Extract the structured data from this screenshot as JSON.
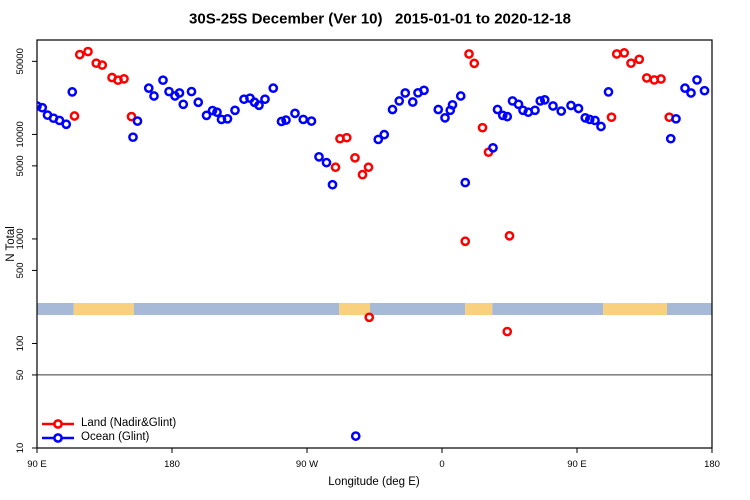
{
  "chart_data": {
    "type": "scatter",
    "title": "30S-25S December (Ver 10)   2015-01-01 to 2020-12-18",
    "xlabel": "Longitude (deg E)",
    "ylabel": "N Total",
    "xlim": [
      90,
      540
    ],
    "ylim": [
      10,
      80000
    ],
    "yscale": "log",
    "grid": "off",
    "legend_position": "bottom-left",
    "x_ticks": [
      {
        "value": 90,
        "label": "90 E"
      },
      {
        "value": 180,
        "label": "180"
      },
      {
        "value": 270,
        "label": "90 W"
      },
      {
        "value": 360,
        "label": "0"
      },
      {
        "value": 450,
        "label": "90 E"
      },
      {
        "value": 540,
        "label": "180"
      }
    ],
    "y_ticks": [
      {
        "value": 10,
        "label": "10"
      },
      {
        "value": 50,
        "label": "50"
      },
      {
        "value": 100,
        "label": "100"
      },
      {
        "value": 500,
        "label": "500"
      },
      {
        "value": 1000,
        "label": "1000"
      },
      {
        "value": 5000,
        "label": "5000"
      },
      {
        "value": 10000,
        "label": "10000"
      },
      {
        "value": 50000,
        "label": "50000"
      }
    ],
    "reference_line": {
      "value": 50,
      "color": "#3a3a3a"
    },
    "surface_band": {
      "value_range": [
        187,
        244
      ],
      "colors": {
        "ocean": "#a6bad8",
        "land": "#f9d07e"
      },
      "segments": [
        {
          "from": 90,
          "to": 114.5,
          "type": "ocean"
        },
        {
          "from": 114.5,
          "to": 154.5,
          "type": "land"
        },
        {
          "from": 154.5,
          "to": 291.5,
          "type": "ocean"
        },
        {
          "from": 291.5,
          "to": 312,
          "type": "land"
        },
        {
          "from": 312,
          "to": 375.5,
          "type": "ocean"
        },
        {
          "from": 375.5,
          "to": 393.5,
          "type": "land"
        },
        {
          "from": 393.5,
          "to": 467.5,
          "type": "ocean"
        },
        {
          "from": 467.5,
          "to": 510,
          "type": "land"
        },
        {
          "from": 510,
          "to": 540,
          "type": "ocean"
        }
      ]
    },
    "series": [
      {
        "name": "Land (Nadir&Glint)",
        "color": "#ff0000",
        "points": [
          [
            115,
            15000
          ],
          [
            118.5,
            58000
          ],
          [
            124,
            62000
          ],
          [
            129.5,
            48000
          ],
          [
            133.5,
            46000
          ],
          [
            140,
            35000
          ],
          [
            144,
            33000
          ],
          [
            148,
            34000
          ],
          [
            153,
            14800
          ],
          [
            289,
            4850
          ],
          [
            292,
            9100
          ],
          [
            296.5,
            9300
          ],
          [
            302,
            5970
          ],
          [
            307,
            4120
          ],
          [
            311,
            4850
          ],
          [
            311.5,
            178
          ],
          [
            375.5,
            950
          ],
          [
            378,
            58800
          ],
          [
            381.5,
            47800
          ],
          [
            387,
            11600
          ],
          [
            391,
            6760
          ],
          [
            403.5,
            130
          ],
          [
            405,
            1070
          ],
          [
            473,
            14600
          ],
          [
            476.5,
            58800
          ],
          [
            481.5,
            60200
          ],
          [
            486,
            48000
          ],
          [
            491.5,
            52300
          ],
          [
            496.5,
            34700
          ],
          [
            501.5,
            33200
          ],
          [
            506,
            33900
          ],
          [
            511.5,
            14600
          ]
        ]
      },
      {
        "name": "Ocean (Glint)",
        "color": "#0000ff",
        "points": [
          [
            90,
            18700
          ],
          [
            93.5,
            18000
          ],
          [
            97,
            15300
          ],
          [
            101,
            14300
          ],
          [
            105,
            13600
          ],
          [
            109.5,
            12500
          ],
          [
            113.5,
            25500
          ],
          [
            154,
            9400
          ],
          [
            157,
            13400
          ],
          [
            164.5,
            27700
          ],
          [
            168,
            23300
          ],
          [
            174,
            33000
          ],
          [
            178,
            25700
          ],
          [
            182,
            23300
          ],
          [
            185,
            24900
          ],
          [
            187.5,
            19400
          ],
          [
            193,
            25700
          ],
          [
            197.5,
            20300
          ],
          [
            203,
            15200
          ],
          [
            207,
            16900
          ],
          [
            210,
            16300
          ],
          [
            213,
            13900
          ],
          [
            217,
            14100
          ],
          [
            222,
            17000
          ],
          [
            228,
            21700
          ],
          [
            232,
            22200
          ],
          [
            235,
            20300
          ],
          [
            238,
            19000
          ],
          [
            242,
            21700
          ],
          [
            247.5,
            27700
          ],
          [
            253,
            13300
          ],
          [
            256,
            13700
          ],
          [
            262,
            15900
          ],
          [
            267.5,
            13900
          ],
          [
            273,
            13400
          ],
          [
            278,
            6100
          ],
          [
            283,
            5370
          ],
          [
            287,
            3300
          ],
          [
            302.5,
            13
          ],
          [
            317.5,
            8950
          ],
          [
            321.5,
            9950
          ],
          [
            327,
            17300
          ],
          [
            331.5,
            20900
          ],
          [
            335.5,
            24900
          ],
          [
            340.5,
            20400
          ],
          [
            344,
            25000
          ],
          [
            348,
            26400
          ],
          [
            357.5,
            17300
          ],
          [
            362,
            14400
          ],
          [
            365.5,
            17000
          ],
          [
            367,
            19200
          ],
          [
            372.5,
            23300
          ],
          [
            375.5,
            3460
          ],
          [
            394,
            7440
          ],
          [
            397,
            17300
          ],
          [
            400.5,
            15200
          ],
          [
            403.5,
            14800
          ],
          [
            407,
            20900
          ],
          [
            411,
            19400
          ],
          [
            414,
            17000
          ],
          [
            417.5,
            16300
          ],
          [
            422,
            17000
          ],
          [
            425.5,
            20900
          ],
          [
            428.5,
            21400
          ],
          [
            434,
            18700
          ],
          [
            439.5,
            16700
          ],
          [
            446,
            18900
          ],
          [
            451,
            17700
          ],
          [
            455.5,
            14400
          ],
          [
            458.5,
            13900
          ],
          [
            462,
            13600
          ],
          [
            466,
            11900
          ],
          [
            471,
            25500
          ],
          [
            512.5,
            9100
          ],
          [
            516,
            14100
          ],
          [
            522,
            27700
          ],
          [
            526,
            24900
          ],
          [
            530,
            33200
          ],
          [
            535,
            26200
          ]
        ]
      }
    ]
  }
}
